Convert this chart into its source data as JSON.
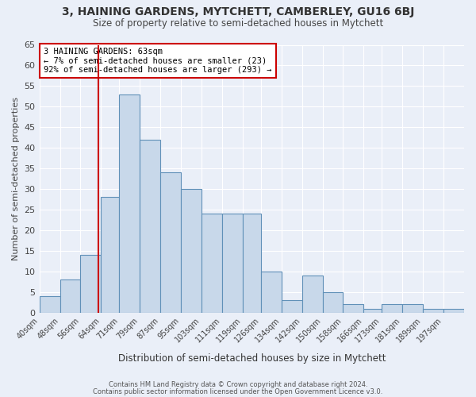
{
  "title": "3, HAINING GARDENS, MYTCHETT, CAMBERLEY, GU16 6BJ",
  "subtitle": "Size of property relative to semi-detached houses in Mytchett",
  "xlabel": "Distribution of semi-detached houses by size in Mytchett",
  "ylabel": "Number of semi-detached properties",
  "bar_labels": [
    "40sqm",
    "48sqm",
    "56sqm",
    "64sqm",
    "71sqm",
    "79sqm",
    "87sqm",
    "95sqm",
    "103sqm",
    "111sqm",
    "119sqm",
    "126sqm",
    "134sqm",
    "142sqm",
    "150sqm",
    "158sqm",
    "166sqm",
    "173sqm",
    "181sqm",
    "189sqm",
    "197sqm"
  ],
  "bar_heights": [
    4,
    8,
    14,
    28,
    53,
    42,
    34,
    30,
    24,
    24,
    24,
    10,
    3,
    9,
    5,
    2,
    1,
    2,
    2,
    1,
    1
  ],
  "bar_left_edges": [
    40,
    48,
    56,
    64,
    71,
    79,
    87,
    95,
    103,
    111,
    119,
    126,
    134,
    142,
    150,
    158,
    166,
    173,
    181,
    189,
    197
  ],
  "bar_right_edges": [
    48,
    56,
    64,
    71,
    79,
    87,
    95,
    103,
    111,
    119,
    126,
    134,
    142,
    150,
    158,
    166,
    173,
    181,
    189,
    197,
    205
  ],
  "bar_color": "#c8d8ea",
  "bar_edge_color": "#6090b8",
  "bg_color": "#eaeff8",
  "grid_color": "#ffffff",
  "red_line_x": 63,
  "annotation_line1": "3 HAINING GARDENS: 63sqm",
  "annotation_line2": "← 7% of semi-detached houses are smaller (23)",
  "annotation_line3": "92% of semi-detached houses are larger (293) →",
  "annotation_box_color": "#ffffff",
  "annotation_box_edge": "#cc0000",
  "ylim": [
    0,
    65
  ],
  "yticks": [
    0,
    5,
    10,
    15,
    20,
    25,
    30,
    35,
    40,
    45,
    50,
    55,
    60,
    65
  ],
  "footer1": "Contains HM Land Registry data © Crown copyright and database right 2024.",
  "footer2": "Contains public sector information licensed under the Open Government Licence v3.0."
}
